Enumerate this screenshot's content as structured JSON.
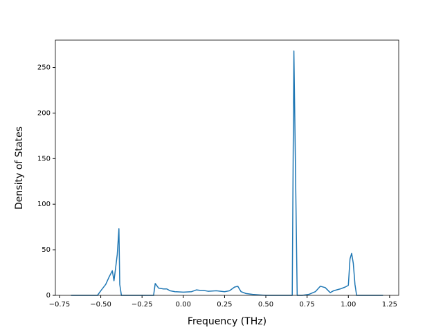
{
  "chart_data": {
    "type": "line",
    "xlabel": "Frequency (THz)",
    "ylabel": "Density of States",
    "x": [
      -0.68,
      -0.52,
      -0.5,
      -0.47,
      -0.45,
      -0.43,
      -0.42,
      -0.41,
      -0.4,
      -0.39,
      -0.385,
      -0.375,
      -0.18,
      -0.17,
      -0.15,
      -0.12,
      -0.1,
      -0.08,
      -0.05,
      0.0,
      0.05,
      0.08,
      0.1,
      0.12,
      0.15,
      0.2,
      0.25,
      0.28,
      0.31,
      0.33,
      0.35,
      0.38,
      0.42,
      0.46,
      0.5,
      0.66,
      0.67,
      0.69,
      0.72,
      0.76,
      0.8,
      0.83,
      0.86,
      0.89,
      0.91,
      0.95,
      0.98,
      1.0,
      1.01,
      1.02,
      1.03,
      1.04,
      1.05,
      1.21
    ],
    "series": [
      {
        "color": "#1f77b4",
        "values": [
          0,
          0,
          5,
          12,
          20,
          27,
          16,
          30,
          45,
          73,
          12,
          0,
          0,
          13,
          8,
          7,
          7,
          5,
          4,
          3.5,
          4,
          6,
          5.5,
          5.5,
          4.5,
          5,
          4,
          5,
          9,
          10,
          4,
          2,
          1,
          0.5,
          0,
          0,
          268,
          0,
          0,
          1,
          4,
          10,
          8.5,
          3,
          5,
          7,
          9,
          11,
          40,
          46,
          35,
          12,
          0,
          0
        ]
      }
    ],
    "xlim": [
      -0.775,
      1.305
    ],
    "ylim": [
      0,
      280
    ],
    "xticks": [
      {
        "value": -0.75,
        "label": "−0.75"
      },
      {
        "value": -0.5,
        "label": "−0.50"
      },
      {
        "value": -0.25,
        "label": "−0.25"
      },
      {
        "value": 0,
        "label": "0.00"
      },
      {
        "value": 0.25,
        "label": "0.25"
      },
      {
        "value": 0.5,
        "label": "0.50"
      },
      {
        "value": 0.75,
        "label": "0.75"
      },
      {
        "value": 1,
        "label": "1.00"
      },
      {
        "value": 1.25,
        "label": "1.25"
      }
    ],
    "yticks": [
      0,
      50,
      100,
      150,
      200,
      250
    ]
  }
}
